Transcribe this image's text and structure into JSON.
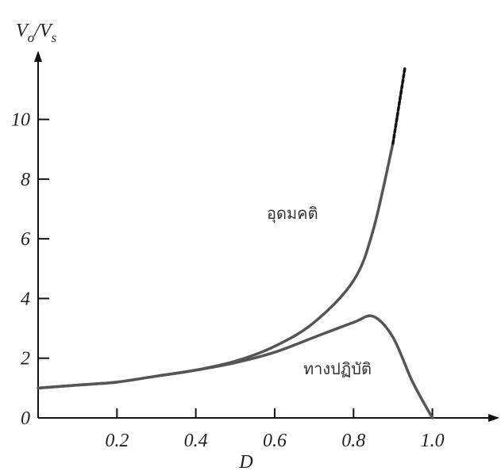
{
  "chart_data": {
    "type": "line",
    "ylabel": [
      "V",
      "o",
      "/V",
      "s"
    ],
    "xlabel": "D",
    "xlim": [
      0,
      1.17
    ],
    "ylim": [
      0,
      12.3
    ],
    "xticks": [
      0.2,
      0.4,
      0.6,
      0.8,
      {
        "value": 1,
        "label": "1.0"
      }
    ],
    "yticks": [
      0,
      2,
      4,
      6,
      8,
      10
    ],
    "series": [
      {
        "color": "#555555",
        "x": [
          0,
          0.1,
          0.2,
          0.3,
          0.4,
          0.5,
          0.6,
          0.7,
          0.8,
          0.85,
          0.9
        ],
        "values": [
          1,
          1.1,
          1.2,
          1.4,
          1.6,
          1.9,
          2.4,
          3.2,
          4.6,
          6.3,
          9.2
        ]
      },
      {
        "color": "#111111",
        "dashed": true,
        "x": [
          0.9,
          0.93
        ],
        "values": [
          9.2,
          11.7
        ]
      },
      {
        "color": "#555555",
        "x": [
          0,
          0.1,
          0.2,
          0.3,
          0.4,
          0.5,
          0.6,
          0.7,
          0.8,
          0.85,
          0.9,
          0.95,
          1.0
        ],
        "values": [
          1,
          1.1,
          1.2,
          1.4,
          1.6,
          1.85,
          2.2,
          2.7,
          3.2,
          3.4,
          2.7,
          1.2,
          0
        ]
      }
    ],
    "annotations": [
      "อุดมคติ",
      "ทางปฏิบัติ"
    ]
  }
}
